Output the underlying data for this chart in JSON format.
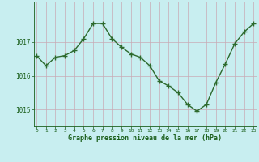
{
  "x": [
    0,
    1,
    2,
    3,
    4,
    5,
    6,
    7,
    8,
    9,
    10,
    11,
    12,
    13,
    14,
    15,
    16,
    17,
    18,
    19,
    20,
    21,
    22,
    23
  ],
  "y": [
    1016.6,
    1016.3,
    1016.55,
    1016.6,
    1016.75,
    1017.1,
    1017.55,
    1017.55,
    1017.1,
    1016.85,
    1016.65,
    1016.55,
    1016.3,
    1015.85,
    1015.7,
    1015.5,
    1015.15,
    1014.95,
    1015.15,
    1015.8,
    1016.35,
    1016.95,
    1017.3,
    1017.55
  ],
  "line_color": "#2d6a2d",
  "marker": "+",
  "marker_size": 4,
  "line_width": 1.0,
  "background_color": "#c8eef0",
  "grid_color": "#c8aab4",
  "xlabel": "Graphe pression niveau de la mer (hPa)",
  "xlabel_color": "#1a5e1a",
  "tick_color": "#1a5e1a",
  "ylim": [
    1014.5,
    1018.2
  ],
  "yticks": [
    1015,
    1016,
    1017
  ],
  "xticks": [
    0,
    1,
    2,
    3,
    4,
    5,
    6,
    7,
    8,
    9,
    10,
    11,
    12,
    13,
    14,
    15,
    16,
    17,
    18,
    19,
    20,
    21,
    22,
    23
  ]
}
